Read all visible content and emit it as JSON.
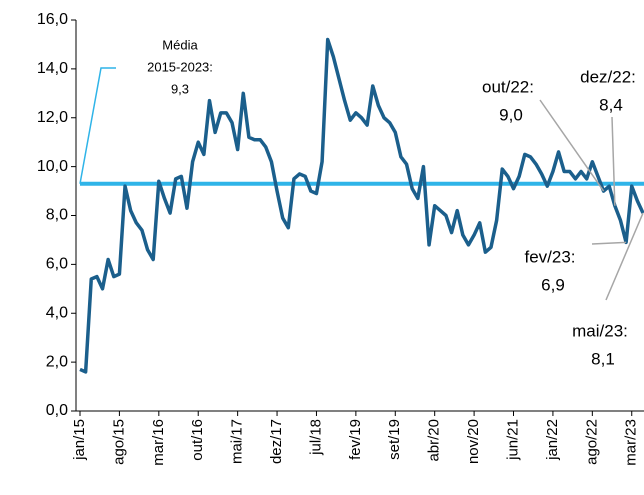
{
  "chart_data": {
    "type": "line",
    "categories": [
      "jan/15",
      null,
      null,
      null,
      null,
      null,
      null,
      "ago/15",
      null,
      null,
      null,
      null,
      null,
      null,
      "mar/16",
      null,
      null,
      null,
      null,
      null,
      null,
      "out/16",
      null,
      null,
      null,
      null,
      null,
      null,
      "mai/17",
      null,
      null,
      null,
      null,
      null,
      null,
      "dez/17",
      null,
      null,
      null,
      null,
      null,
      null,
      "jul/18",
      null,
      null,
      null,
      null,
      null,
      null,
      "fev/19",
      null,
      null,
      null,
      null,
      null,
      null,
      "set/19",
      null,
      null,
      null,
      null,
      null,
      null,
      "abr/20",
      null,
      null,
      null,
      null,
      null,
      null,
      "nov/20",
      null,
      null,
      null,
      null,
      null,
      null,
      "jun/21",
      null,
      null,
      null,
      null,
      null,
      null,
      "jan/22",
      null,
      null,
      null,
      null,
      null,
      null,
      "ago/22",
      null,
      null,
      null,
      null,
      null,
      null,
      "mar/23",
      null,
      null
    ],
    "values": [
      1.7,
      1.6,
      5.4,
      5.5,
      5.0,
      6.2,
      5.5,
      5.6,
      9.2,
      8.2,
      7.7,
      7.4,
      6.6,
      6.2,
      9.4,
      8.7,
      8.1,
      9.5,
      9.6,
      8.3,
      10.2,
      11.0,
      10.5,
      12.7,
      11.4,
      12.2,
      12.2,
      11.8,
      10.7,
      13.0,
      11.2,
      11.1,
      11.1,
      10.8,
      10.2,
      9.0,
      7.9,
      7.5,
      9.5,
      9.7,
      9.6,
      9.0,
      8.9,
      10.2,
      15.2,
      14.5,
      13.6,
      12.7,
      11.9,
      12.2,
      12.0,
      11.7,
      13.3,
      12.5,
      12.0,
      11.8,
      11.4,
      10.4,
      10.1,
      9.1,
      8.7,
      10.0,
      6.8,
      8.4,
      8.2,
      8.0,
      7.3,
      8.2,
      7.2,
      6.8,
      7.2,
      7.7,
      6.5,
      6.7,
      7.8,
      9.9,
      9.6,
      9.1,
      9.6,
      10.5,
      10.4,
      10.1,
      9.7,
      9.2,
      9.8,
      10.6,
      9.8,
      9.8,
      9.5,
      9.8,
      9.5,
      10.2,
      9.6,
      9.0,
      9.2,
      8.4,
      7.8,
      6.9,
      9.2,
      8.6,
      8.1
    ],
    "color": "#1b5f8c",
    "ylim": [
      0,
      16
    ],
    "yticks": [
      {
        "value": 0,
        "label": "0,0"
      },
      {
        "value": 2,
        "label": "2,0"
      },
      {
        "value": 4,
        "label": "4,0"
      },
      {
        "value": 6,
        "label": "6,0"
      },
      {
        "value": 8,
        "label": "8,0"
      },
      {
        "value": 10,
        "label": "10,0"
      },
      {
        "value": 12,
        "label": "12,0"
      },
      {
        "value": 14,
        "label": "14,0"
      },
      {
        "value": 16,
        "label": "16,0"
      }
    ],
    "reference": {
      "label_lines": [
        "Média",
        "2015-2023:"
      ],
      "value_label": "9,3",
      "value": 9.3,
      "color": "#2fb4e8"
    },
    "annotations": [
      {
        "label": "out/22:",
        "value_label": "9,0",
        "value": 9.0
      },
      {
        "label": "dez/22:",
        "value_label": "8,4",
        "value": 8.4
      },
      {
        "label": "fev/23:",
        "value_label": "6,9",
        "value": 6.9
      },
      {
        "label": "mai/23:",
        "value_label": "8,1",
        "value": 8.1
      }
    ]
  }
}
